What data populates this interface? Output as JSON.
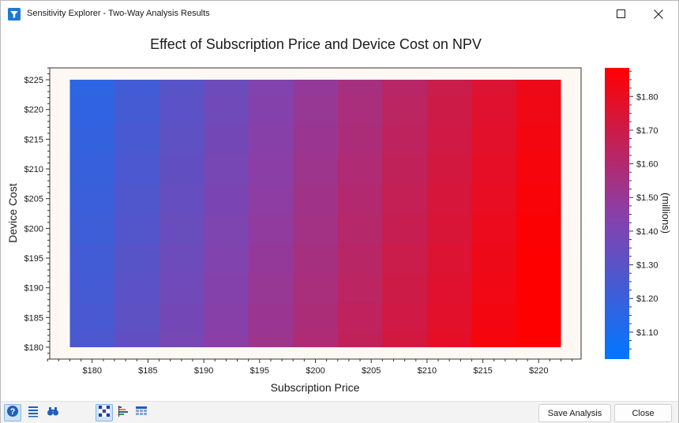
{
  "window": {
    "title": "Sensitivity Explorer - Two-Way Analysis Results"
  },
  "icons": {
    "app": "filter-funnel-icon",
    "maximize": "maximize-icon",
    "close": "close-icon",
    "help": "help-icon",
    "list": "list-icon",
    "find": "binoculars-icon",
    "heatmap": "heatmap-grid-icon",
    "bar": "bar-chart-icon",
    "table": "table-icon"
  },
  "buttons": {
    "save": "Save Analysis",
    "close": "Close"
  },
  "chart_data": {
    "type": "heatmap",
    "title": "Effect of Subscription Price and Device Cost on NPV",
    "xlabel": "Subscription Price",
    "ylabel": "Device Cost",
    "x_values": [
      180,
      184,
      188,
      192,
      196,
      200,
      204,
      208,
      212,
      216,
      220
    ],
    "y_values": [
      180,
      185,
      190,
      195,
      200,
      205,
      210,
      215,
      220,
      225
    ],
    "x_ticks": [
      "$180",
      "$185",
      "$190",
      "$195",
      "$200",
      "$205",
      "$210",
      "$215",
      "$220"
    ],
    "x_tick_values": [
      180,
      185,
      190,
      195,
      200,
      205,
      210,
      215,
      220
    ],
    "y_ticks": [
      "$180",
      "$185",
      "$190",
      "$195",
      "$200",
      "$205",
      "$210",
      "$215",
      "$220",
      "$225"
    ],
    "y_tick_values": [
      180,
      185,
      190,
      195,
      200,
      205,
      210,
      215,
      220,
      225
    ],
    "xlim": [
      176.2,
      223.8
    ],
    "ylim": [
      178,
      227
    ],
    "npv_base": 1.54,
    "npv_price_slope": 0.0165,
    "npv_cost_slope": -0.0022,
    "colorbar": {
      "label": "(millions)",
      "ticks": [
        "$1.10",
        "$1.20",
        "$1.30",
        "$1.40",
        "$1.50",
        "$1.60",
        "$1.70",
        "$1.80"
      ],
      "tick_values": [
        1.1,
        1.2,
        1.3,
        1.4,
        1.5,
        1.6,
        1.7,
        1.8
      ],
      "range": [
        1.02,
        1.885
      ],
      "low_color": "#0077ff",
      "high_color": "#ff0000"
    },
    "plot_background": "#fdf8f3"
  }
}
